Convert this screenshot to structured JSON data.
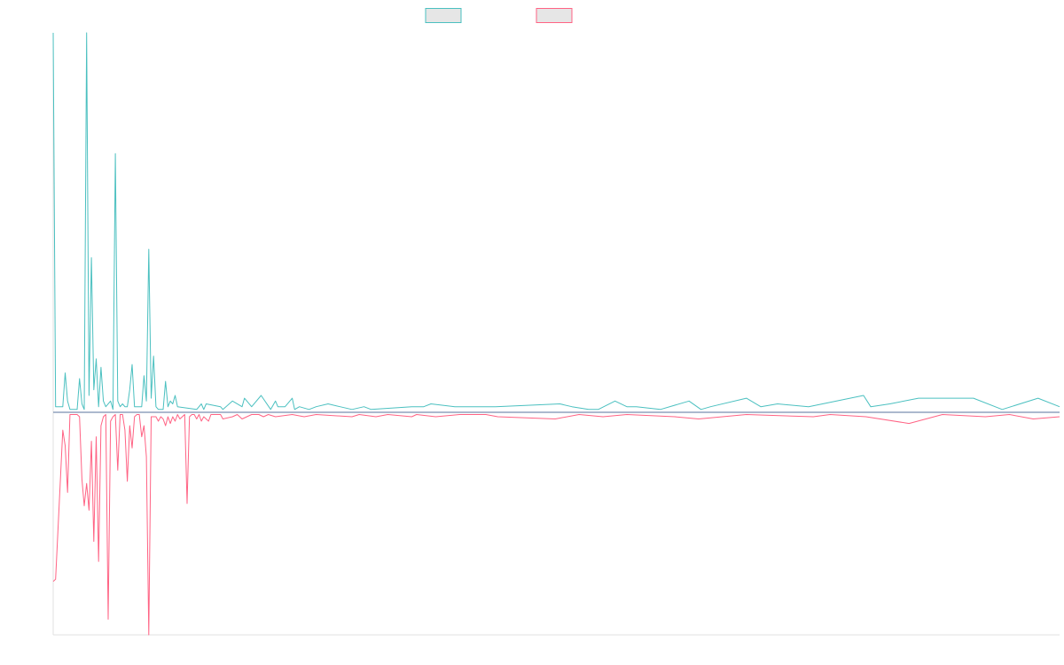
{
  "chart_data": {
    "type": "line",
    "title": "",
    "xlabel": "",
    "ylabel": "",
    "grid": false,
    "legend_position": "top-center",
    "ylim": [
      -1,
      1.35
    ],
    "colors": {
      "series_1": "#4bc0c0",
      "series_2": "#ff6384",
      "baseline": "#7a8fb0"
    },
    "series": [
      {
        "key": "series_1",
        "points": [
          [
            0,
            1.35
          ],
          [
            1,
            0.02
          ],
          [
            4,
            0.02
          ],
          [
            5,
            0.14
          ],
          [
            6,
            0.04
          ],
          [
            7,
            0.01
          ],
          [
            10,
            0.01
          ],
          [
            11,
            0.12
          ],
          [
            12,
            0.03
          ],
          [
            13,
            0.01
          ],
          [
            14,
            1.35
          ],
          [
            15,
            0.06
          ],
          [
            16,
            0.55
          ],
          [
            17,
            0.08
          ],
          [
            18,
            0.19
          ],
          [
            19,
            0.02
          ],
          [
            20,
            0.16
          ],
          [
            21,
            0.04
          ],
          [
            22,
            0.02
          ],
          [
            24,
            0.04
          ],
          [
            25,
            0.01
          ],
          [
            26,
            0.92
          ],
          [
            27,
            0.04
          ],
          [
            28,
            0.02
          ],
          [
            29,
            0.03
          ],
          [
            30,
            0.02
          ],
          [
            31,
            0.02
          ],
          [
            32,
            0.08
          ],
          [
            33,
            0.17
          ],
          [
            34,
            0.02
          ],
          [
            37,
            0.02
          ],
          [
            38,
            0.13
          ],
          [
            39,
            0.04
          ],
          [
            40,
            0.58
          ],
          [
            41,
            0.05
          ],
          [
            42,
            0.2
          ],
          [
            43,
            0.02
          ],
          [
            44,
            0.01
          ],
          [
            46,
            0.01
          ],
          [
            47,
            0.11
          ],
          [
            48,
            0.02
          ],
          [
            49,
            0.04
          ],
          [
            50,
            0.03
          ],
          [
            51,
            0.06
          ],
          [
            52,
            0.02
          ],
          [
            60,
            0.01
          ],
          [
            62,
            0.03
          ],
          [
            63,
            0.01
          ],
          [
            64,
            0.03
          ],
          [
            70,
            0.02
          ],
          [
            71,
            0.01
          ],
          [
            75,
            0.04
          ],
          [
            79,
            0.02
          ],
          [
            80,
            0.05
          ],
          [
            83,
            0.02
          ],
          [
            87,
            0.06
          ],
          [
            91,
            0.01
          ],
          [
            93,
            0.04
          ],
          [
            94,
            0.02
          ],
          [
            97,
            0.02
          ],
          [
            100,
            0.05
          ],
          [
            101,
            0.01
          ],
          [
            103,
            0.02
          ],
          [
            107,
            0.01
          ],
          [
            110,
            0.02
          ],
          [
            115,
            0.03
          ],
          [
            120,
            0.02
          ],
          [
            125,
            0.01
          ],
          [
            130,
            0.02
          ],
          [
            133,
            0.01
          ],
          [
            150,
            0.02
          ],
          [
            155,
            0.02
          ],
          [
            158,
            0.03
          ],
          [
            168,
            0.02
          ],
          [
            173,
            0.02
          ],
          [
            180,
            0.02
          ],
          [
            185,
            0.02
          ],
          [
            212,
            0.03
          ],
          [
            217,
            0.02
          ],
          [
            224,
            0.01
          ],
          [
            228,
            0.01
          ],
          [
            235,
            0.04
          ],
          [
            240,
            0.02
          ],
          [
            244,
            0.02
          ],
          [
            254,
            0.01
          ],
          [
            266,
            0.04
          ],
          [
            271,
            0.01
          ],
          [
            275,
            0.02
          ],
          [
            290,
            0.05
          ],
          [
            296,
            0.02
          ],
          [
            303,
            0.03
          ],
          [
            316,
            0.02
          ],
          [
            339,
            0.06
          ],
          [
            342,
            0.02
          ],
          [
            350,
            0.03
          ],
          [
            362,
            0.05
          ],
          [
            385,
            0.05
          ],
          [
            397,
            0.01
          ],
          [
            412,
            0.05
          ],
          [
            421,
            0.02
          ]
        ]
      },
      {
        "key": "series_2",
        "points": [
          [
            0,
            -0.76
          ],
          [
            1,
            -0.75
          ],
          [
            4,
            -0.08
          ],
          [
            5,
            -0.15
          ],
          [
            6,
            -0.36
          ],
          [
            7,
            -0.01
          ],
          [
            8,
            -0.01
          ],
          [
            9,
            -0.01
          ],
          [
            10,
            -0.01
          ],
          [
            11,
            -0.02
          ],
          [
            12,
            -0.3
          ],
          [
            13,
            -0.42
          ],
          [
            14,
            -0.32
          ],
          [
            15,
            -0.44
          ],
          [
            16,
            -0.13
          ],
          [
            17,
            -0.58
          ],
          [
            18,
            -0.11
          ],
          [
            19,
            -0.67
          ],
          [
            20,
            -0.06
          ],
          [
            21,
            -0.02
          ],
          [
            22,
            -0.01
          ],
          [
            23,
            -0.93
          ],
          [
            24,
            -0.04
          ],
          [
            25,
            -0.02
          ],
          [
            26,
            -0.01
          ],
          [
            27,
            -0.26
          ],
          [
            28,
            -0.01
          ],
          [
            29,
            -0.01
          ],
          [
            30,
            -0.08
          ],
          [
            31,
            -0.31
          ],
          [
            32,
            -0.06
          ],
          [
            33,
            -0.16
          ],
          [
            34,
            -0.02
          ],
          [
            35,
            -0.01
          ],
          [
            36,
            -0.01
          ],
          [
            37,
            -0.11
          ],
          [
            38,
            -0.06
          ],
          [
            39,
            -0.2
          ],
          [
            40,
            -1.0
          ],
          [
            41,
            -0.02
          ],
          [
            43,
            -0.02
          ],
          [
            44,
            -0.04
          ],
          [
            45,
            -0.02
          ],
          [
            46,
            -0.03
          ],
          [
            47,
            -0.06
          ],
          [
            48,
            -0.02
          ],
          [
            49,
            -0.05
          ],
          [
            50,
            -0.02
          ],
          [
            51,
            -0.04
          ],
          [
            52,
            -0.01
          ],
          [
            53,
            -0.03
          ],
          [
            55,
            -0.01
          ],
          [
            56,
            -0.41
          ],
          [
            57,
            -0.02
          ],
          [
            58,
            -0.01
          ],
          [
            59,
            -0.01
          ],
          [
            60,
            -0.03
          ],
          [
            61,
            -0.01
          ],
          [
            62,
            -0.04
          ],
          [
            63,
            -0.02
          ],
          [
            64,
            -0.03
          ],
          [
            65,
            -0.04
          ],
          [
            66,
            -0.01
          ],
          [
            70,
            -0.01
          ],
          [
            71,
            -0.03
          ],
          [
            75,
            -0.02
          ],
          [
            77,
            -0.01
          ],
          [
            79,
            -0.03
          ],
          [
            83,
            -0.01
          ],
          [
            86,
            -0.01
          ],
          [
            88,
            -0.02
          ],
          [
            90,
            -0.01
          ],
          [
            93,
            -0.02
          ],
          [
            100,
            -0.01
          ],
          [
            105,
            -0.02
          ],
          [
            110,
            -0.01
          ],
          [
            125,
            -0.02
          ],
          [
            128,
            -0.01
          ],
          [
            135,
            -0.02
          ],
          [
            140,
            -0.01
          ],
          [
            150,
            -0.02
          ],
          [
            152,
            -0.01
          ],
          [
            160,
            -0.02
          ],
          [
            170,
            -0.01
          ],
          [
            181,
            -0.01
          ],
          [
            186,
            -0.02
          ],
          [
            210,
            -0.03
          ],
          [
            220,
            -0.01
          ],
          [
            230,
            -0.02
          ],
          [
            240,
            -0.01
          ],
          [
            260,
            -0.02
          ],
          [
            270,
            -0.03
          ],
          [
            280,
            -0.02
          ],
          [
            290,
            -0.01
          ],
          [
            318,
            -0.02
          ],
          [
            325,
            -0.01
          ],
          [
            340,
            -0.02
          ],
          [
            358,
            -0.05
          ],
          [
            372,
            -0.01
          ],
          [
            390,
            -0.02
          ],
          [
            400,
            -0.01
          ],
          [
            410,
            -0.03
          ],
          [
            421,
            -0.02
          ]
        ]
      }
    ]
  }
}
